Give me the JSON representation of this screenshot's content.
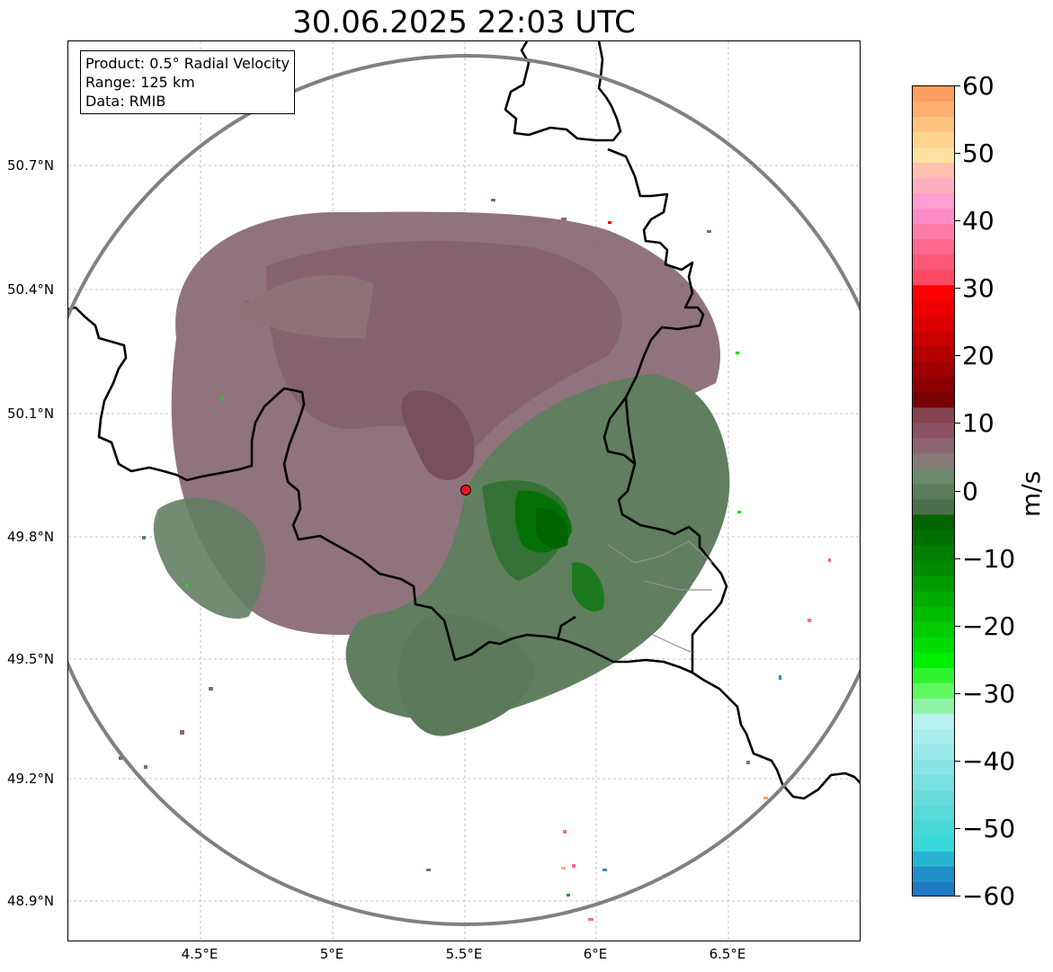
{
  "title": "30.06.2025 22:03 UTC",
  "info": {
    "product": "Product: 0.5° Radial Velocity",
    "range": "Range: 125 km",
    "data": "Data: RMIB"
  },
  "lat_ticks": [
    "50.7°N",
    "50.4°N",
    "50.1°N",
    "49.8°N",
    "49.5°N",
    "49.2°N",
    "48.9°N"
  ],
  "lon_ticks": [
    "4.5°E",
    "5°E",
    "5.5°E",
    "6°E",
    "6.5°E"
  ],
  "colorbar": {
    "unit": "m/s",
    "min": -60,
    "max": 60,
    "ticks": [
      "60",
      "50",
      "40",
      "30",
      "20",
      "10",
      "0",
      "−10",
      "−20",
      "−30",
      "−40",
      "−50",
      "−60"
    ],
    "colors_top_to_bottom": [
      "#ff9e5e",
      "#ffb070",
      "#ffc27f",
      "#ffd48f",
      "#ffe2a0",
      "#ffc0b0",
      "#ffb0c0",
      "#ff9ed0",
      "#ff8cc8",
      "#ff7aa8",
      "#ff6890",
      "#ff5878",
      "#ff4a66",
      "#ff0000",
      "#ee0000",
      "#dd0000",
      "#c80000",
      "#b40000",
      "#a00000",
      "#8c0000",
      "#780000",
      "#844350",
      "#8a5262",
      "#8b6672",
      "#857a78",
      "#6a8a6a",
      "#5a7d5a",
      "#4b6e4b",
      "#006400",
      "#007000",
      "#007e00",
      "#008c00",
      "#009c00",
      "#00ac00",
      "#00bc00",
      "#00cc00",
      "#00dc00",
      "#00ee00",
      "#30f430",
      "#60f860",
      "#90f4a8",
      "#b8f0f0",
      "#a8ecec",
      "#98e8e8",
      "#88e4e4",
      "#78e0e0",
      "#68dcdc",
      "#58dada",
      "#48d8d8",
      "#38d8d8",
      "#28b4d0",
      "#2090c8",
      "#1f7ac4"
    ]
  },
  "radar": {
    "marker_color": "#e31a1c"
  },
  "colors": {
    "receding": "#8b6672",
    "approaching": "#5c7d5c",
    "strong_approaching": "#007000",
    "range_ring": "#808080",
    "border": "#000000"
  }
}
